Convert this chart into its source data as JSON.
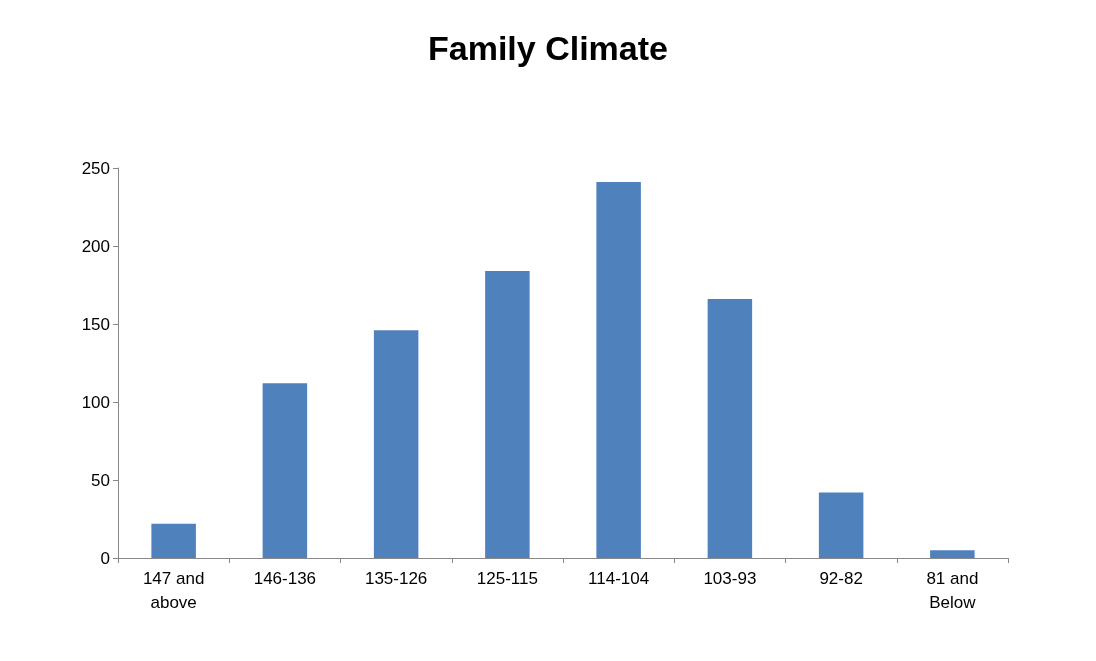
{
  "chart_data": {
    "type": "bar",
    "title": "Family Climate",
    "categories": [
      "147 and\nabove",
      "146-136",
      "135-126",
      "125-115",
      "114-104",
      "103-93",
      "92-82",
      "81 and\nBelow"
    ],
    "values": [
      22,
      112,
      146,
      184,
      241,
      166,
      42,
      5
    ],
    "color": "#4f81bd",
    "ylim": [
      0,
      250
    ],
    "yticks": [
      0,
      50,
      100,
      150,
      200,
      250
    ],
    "grid": false
  }
}
